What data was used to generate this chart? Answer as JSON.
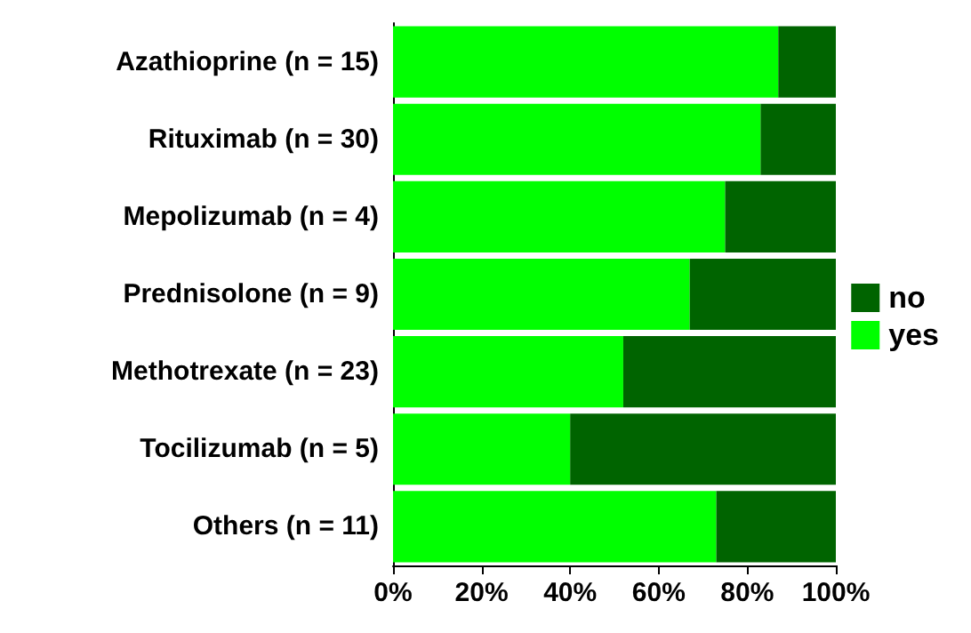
{
  "chart_data": {
    "type": "bar",
    "orientation": "horizontal",
    "stacked": true,
    "categories": [
      "Azathioprine (n = 15)",
      "Rituximab (n = 30)",
      "Mepolizumab (n = 4)",
      "Prednisolone (n = 9)",
      "Methotrexate (n = 23)",
      "Tocilizumab (n = 5)",
      "Others (n = 11)"
    ],
    "series": [
      {
        "name": "yes",
        "color": "#00ff00",
        "values": [
          87,
          83,
          75,
          67,
          52,
          40,
          73
        ]
      },
      {
        "name": "no",
        "color": "#006400",
        "values": [
          13,
          17,
          25,
          33,
          48,
          60,
          27
        ]
      }
    ],
    "xlim": [
      0,
      100
    ],
    "xticks": [
      {
        "value": 0,
        "label": "0%"
      },
      {
        "value": 20,
        "label": "20%"
      },
      {
        "value": 40,
        "label": "40%"
      },
      {
        "value": 60,
        "label": "60%"
      },
      {
        "value": 80,
        "label": "80%"
      },
      {
        "value": 100,
        "label": "100%"
      }
    ],
    "grid": false,
    "legend": "right"
  }
}
